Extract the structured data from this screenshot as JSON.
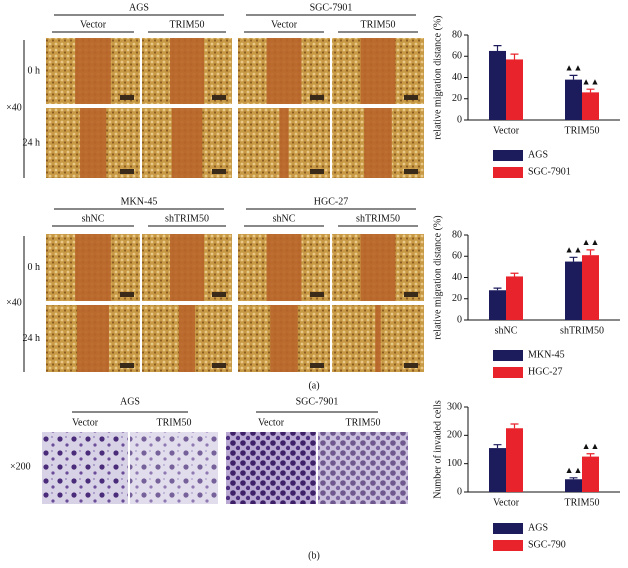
{
  "figure": {
    "a_top": {
      "groups": [
        {
          "name": "AGS",
          "conditions": [
            "Vector",
            "TRIM50"
          ]
        },
        {
          "name": "SGC-7901",
          "conditions": [
            "Vector",
            "TRIM50"
          ]
        }
      ],
      "rows": [
        "0 h",
        "24 h"
      ],
      "magnification": "×40"
    },
    "a_bottom": {
      "groups": [
        {
          "name": "MKN-45",
          "conditions": [
            "shNC",
            "shTRIM50"
          ]
        },
        {
          "name": "HGC-27",
          "conditions": [
            "shNC",
            "shTRIM50"
          ]
        }
      ],
      "rows": [
        "0 h",
        "24 h"
      ],
      "magnification": "×40"
    },
    "label_a": "(a)",
    "b": {
      "groups": [
        {
          "name": "AGS",
          "conditions": [
            "Vector",
            "TRIM50"
          ]
        },
        {
          "name": "SGC-7901",
          "conditions": [
            "Vector",
            "TRIM50"
          ]
        }
      ],
      "magnification": "×200"
    },
    "label_b": "(b)"
  },
  "chart_data": [
    {
      "type": "bar",
      "y_label": "relative migration distance (%)",
      "categories": [
        "Vector",
        "TRIM50"
      ],
      "series": [
        {
          "name": "AGS",
          "color": "#1c1c5c",
          "values": [
            65,
            38
          ],
          "errors": [
            5,
            4
          ],
          "markers": [
            null,
            "▲▲"
          ]
        },
        {
          "name": "SGC-7901",
          "color": "#e8232b",
          "values": [
            57,
            26
          ],
          "errors": [
            5,
            3
          ],
          "markers": [
            null,
            "▲▲"
          ]
        }
      ],
      "ylim": [
        0,
        80
      ],
      "yticks": [
        0,
        20,
        40,
        60,
        80
      ]
    },
    {
      "type": "bar",
      "y_label": "relative migration distance (%)",
      "categories": [
        "shNC",
        "shTRIM50"
      ],
      "series": [
        {
          "name": "MKN-45",
          "color": "#1c1c5c",
          "values": [
            28,
            55
          ],
          "errors": [
            2,
            4
          ],
          "markers": [
            null,
            "▲▲"
          ]
        },
        {
          "name": "HGC-27",
          "color": "#e8232b",
          "values": [
            41,
            61
          ],
          "errors": [
            3,
            5
          ],
          "markers": [
            null,
            "▲▲"
          ]
        }
      ],
      "ylim": [
        0,
        80
      ],
      "yticks": [
        0,
        20,
        40,
        60,
        80
      ]
    },
    {
      "type": "bar",
      "y_label": "Number of invaded cells",
      "categories": [
        "Vector",
        "TRIM50"
      ],
      "series": [
        {
          "name": "AGS",
          "color": "#1c1c5c",
          "values": [
            155,
            45
          ],
          "errors": [
            12,
            5
          ],
          "markers": [
            null,
            "▲▲"
          ]
        },
        {
          "name": "SGC-790",
          "color": "#e8232b",
          "values": [
            225,
            125
          ],
          "errors": [
            15,
            10
          ],
          "markers": [
            null,
            "▲▲"
          ]
        }
      ],
      "ylim": [
        0,
        300
      ],
      "yticks": [
        0,
        100,
        200,
        300
      ]
    }
  ]
}
